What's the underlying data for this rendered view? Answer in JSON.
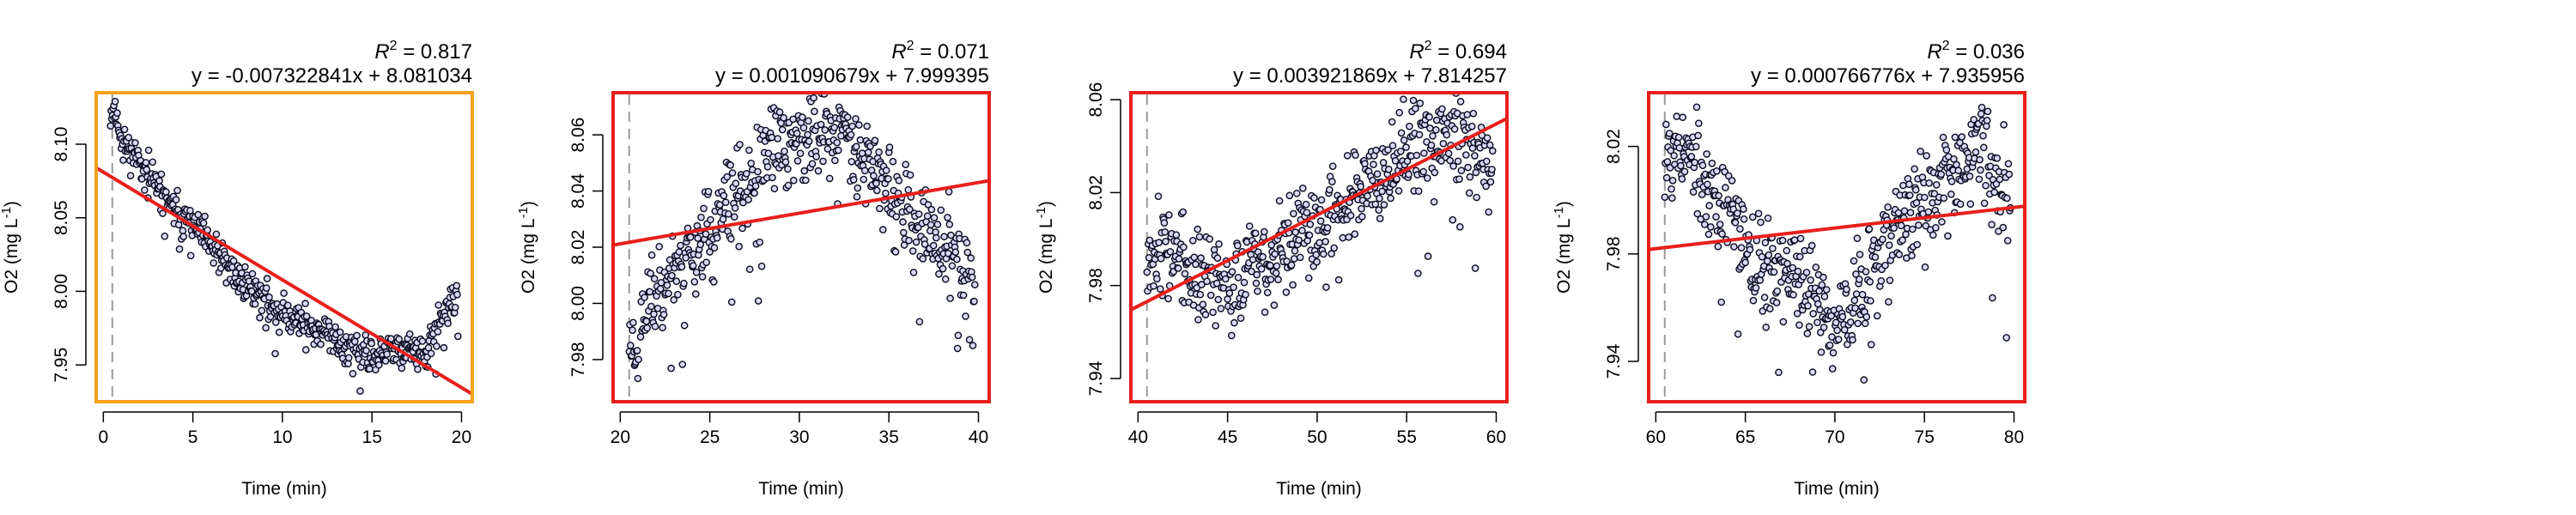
{
  "chart_data": [
    {
      "type": "scatter",
      "panel": 1,
      "frame_color": "#f5a11c",
      "r2_label": "R",
      "r2_exp": "2",
      "r2_value": " = 0.817",
      "equation": "y = -0.007322841x + 8.081034",
      "slope": -0.007322841,
      "intercept": 8.081034,
      "xlabel": "Time (min)",
      "ylabel": "O2 (mg L",
      "ylabel_exp": "-1",
      "ylabel_end": ")",
      "xlim": [
        -0.4,
        20.6
      ],
      "ylim": [
        7.925,
        8.135
      ],
      "x_ticks": [
        0,
        5,
        10,
        15,
        20
      ],
      "y_ticks": [
        "7.95",
        "8.00",
        "8.05",
        "8.10"
      ],
      "marker_x": 0.5,
      "points": [
        [
          0.4,
          8.12
        ],
        [
          0.6,
          8.125
        ],
        [
          0.8,
          8.115
        ],
        [
          1.0,
          8.105
        ],
        [
          1.5,
          8.095
        ],
        [
          2.0,
          8.09
        ],
        [
          3.0,
          8.07
        ],
        [
          4.0,
          8.055
        ],
        [
          5.0,
          8.045
        ],
        [
          6.0,
          8.03
        ],
        [
          7.0,
          8.015
        ],
        [
          8.0,
          8.005
        ],
        [
          9.0,
          7.995
        ],
        [
          10.0,
          7.985
        ],
        [
          11.0,
          7.98
        ],
        [
          12.0,
          7.975
        ],
        [
          13.0,
          7.965
        ],
        [
          14.0,
          7.96
        ],
        [
          15.0,
          7.955
        ],
        [
          16.0,
          7.96
        ],
        [
          17.0,
          7.962
        ],
        [
          18.0,
          7.955
        ],
        [
          19.0,
          7.985
        ],
        [
          19.8,
          7.995
        ]
      ],
      "noise": 0.006,
      "seed": 11
    },
    {
      "type": "scatter",
      "panel": 2,
      "frame_color": "#e8201c",
      "r2_label": "R",
      "r2_exp": "2",
      "r2_value": " = 0.071",
      "equation": "y = 0.001090679x + 7.999395",
      "slope": 0.001090679,
      "intercept": 7.999395,
      "xlabel": "Time (min)",
      "ylabel": "O2 (mg L",
      "ylabel_exp": "-1",
      "ylabel_end": ")",
      "xlim": [
        19.6,
        40.6
      ],
      "ylim": [
        7.965,
        8.075
      ],
      "x_ticks": [
        20,
        25,
        30,
        35,
        40
      ],
      "y_ticks": [
        "7.98",
        "8.00",
        "8.02",
        "8.04",
        "8.06"
      ],
      "marker_x": 20.5,
      "points": [
        [
          20.5,
          7.988
        ],
        [
          21.0,
          7.985
        ],
        [
          21.5,
          8.0
        ],
        [
          22.0,
          8.005
        ],
        [
          23.0,
          8.012
        ],
        [
          24.0,
          8.02
        ],
        [
          25.0,
          8.025
        ],
        [
          26.0,
          8.035
        ],
        [
          27.0,
          8.04
        ],
        [
          28.0,
          8.05
        ],
        [
          29.0,
          8.058
        ],
        [
          30.0,
          8.058
        ],
        [
          31.0,
          8.06
        ],
        [
          32.0,
          8.062
        ],
        [
          33.0,
          8.06
        ],
        [
          34.0,
          8.05
        ],
        [
          35.0,
          8.04
        ],
        [
          36.0,
          8.03
        ],
        [
          37.0,
          8.025
        ],
        [
          38.0,
          8.02
        ],
        [
          39.0,
          8.015
        ],
        [
          39.8,
          8.005
        ]
      ],
      "noise": 0.008,
      "seed": 23
    },
    {
      "type": "scatter",
      "panel": 3,
      "frame_color": "#e8201c",
      "r2_label": "R",
      "r2_exp": "2",
      "r2_value": " = 0.694",
      "equation": "y = 0.003921869x + 7.814257",
      "slope": 0.003921869,
      "intercept": 7.814257,
      "xlabel": "Time (min)",
      "ylabel": "O2 (mg L",
      "ylabel_exp": "-1",
      "ylabel_end": ")",
      "xlim": [
        39.6,
        60.6
      ],
      "ylim": [
        7.93,
        8.063
      ],
      "x_ticks": [
        40,
        45,
        50,
        55,
        60
      ],
      "y_ticks": [
        "7.94",
        "7.98",
        "8.02",
        "8.06"
      ],
      "marker_x": 40.5,
      "points": [
        [
          40.5,
          7.995
        ],
        [
          41.0,
          7.998
        ],
        [
          42.0,
          7.995
        ],
        [
          43.0,
          7.985
        ],
        [
          44.0,
          7.98
        ],
        [
          45.0,
          7.982
        ],
        [
          46.0,
          7.985
        ],
        [
          47.0,
          7.99
        ],
        [
          48.0,
          7.995
        ],
        [
          49.0,
          8.0
        ],
        [
          50.0,
          8.005
        ],
        [
          51.0,
          8.012
        ],
        [
          52.0,
          8.02
        ],
        [
          53.0,
          8.028
        ],
        [
          54.0,
          8.035
        ],
        [
          55.0,
          8.038
        ],
        [
          56.0,
          8.04
        ],
        [
          57.0,
          8.045
        ],
        [
          58.0,
          8.045
        ],
        [
          59.0,
          8.04
        ],
        [
          59.8,
          8.03
        ]
      ],
      "noise": 0.01,
      "seed": 37
    },
    {
      "type": "scatter",
      "panel": 4,
      "frame_color": "#e8201c",
      "r2_label": "R",
      "r2_exp": "2",
      "r2_value": " = 0.036",
      "equation": "y = 0.000766776x + 7.935956",
      "slope": 0.000766776,
      "intercept": 7.935956,
      "xlabel": "Time (min)",
      "ylabel": "O2 (mg L",
      "ylabel_exp": "-1",
      "ylabel_end": ")",
      "xlim": [
        59.6,
        80.6
      ],
      "ylim": [
        7.925,
        8.04
      ],
      "x_ticks": [
        60,
        65,
        70,
        75,
        80
      ],
      "y_ticks": [
        "7.94",
        "7.98",
        "8.02"
      ],
      "marker_x": 60.5,
      "points": [
        [
          60.5,
          8.02
        ],
        [
          61.0,
          8.022
        ],
        [
          62.0,
          8.015
        ],
        [
          63.0,
          8.005
        ],
        [
          64.0,
          7.995
        ],
        [
          65.0,
          7.985
        ],
        [
          66.0,
          7.975
        ],
        [
          67.0,
          7.975
        ],
        [
          68.0,
          7.968
        ],
        [
          69.0,
          7.962
        ],
        [
          70.0,
          7.955
        ],
        [
          71.0,
          7.962
        ],
        [
          72.0,
          7.975
        ],
        [
          73.0,
          7.985
        ],
        [
          74.0,
          7.995
        ],
        [
          75.0,
          8.0
        ],
        [
          76.0,
          8.005
        ],
        [
          77.0,
          8.012
        ],
        [
          78.0,
          8.02
        ],
        [
          79.0,
          8.01
        ],
        [
          79.8,
          8.005
        ]
      ],
      "noise": 0.009,
      "seed": 53
    }
  ]
}
